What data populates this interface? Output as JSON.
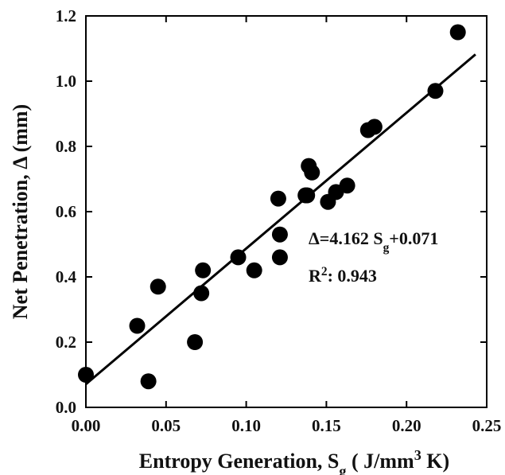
{
  "chart_data": {
    "type": "scatter",
    "xlabel": [
      "Entropy Generation, S",
      "g",
      " ( J/mm",
      "3",
      " K)"
    ],
    "ylabel": "Net Penetration, Δ (mm)",
    "annotations": [
      [
        "Δ=4.162 S",
        "g",
        "+0.071"
      ],
      [
        "R",
        "2",
        ": 0.943"
      ]
    ],
    "xlim": [
      0,
      0.25
    ],
    "ylim": [
      0,
      1.2
    ],
    "xticks": [
      {
        "value": 0,
        "label": "0.00"
      },
      {
        "value": 0.05,
        "label": "0.05"
      },
      {
        "value": 0.1,
        "label": "0.10"
      },
      {
        "value": 0.15,
        "label": "0.15"
      },
      {
        "value": 0.2,
        "label": "0.20"
      },
      {
        "value": 0.25,
        "label": "0.25"
      }
    ],
    "yticks": [
      {
        "value": 0,
        "label": "0.0"
      },
      0.2,
      0.4,
      0.6,
      0.8,
      {
        "value": 1,
        "label": "1.0"
      },
      1.2
    ],
    "color": "#000000",
    "x": [
      0,
      0.032,
      0.039,
      0.045,
      0.068,
      0.072,
      0.073,
      0.095,
      0.105,
      0.12,
      0.121,
      0.121,
      0.137,
      0.139,
      0.141,
      0.138,
      0.151,
      0.156,
      0.163,
      0.176,
      0.18,
      0.218,
      0.232
    ],
    "values": [
      0.1,
      0.25,
      0.08,
      0.37,
      0.2,
      0.35,
      0.42,
      0.46,
      0.42,
      0.64,
      0.53,
      0.46,
      0.65,
      0.74,
      0.72,
      0.65,
      0.63,
      0.66,
      0.68,
      0.85,
      0.86,
      0.97,
      1.15
    ],
    "fit": {
      "x": [
        0,
        0.243
      ],
      "values": [
        0.071,
        1.082
      ]
    }
  }
}
